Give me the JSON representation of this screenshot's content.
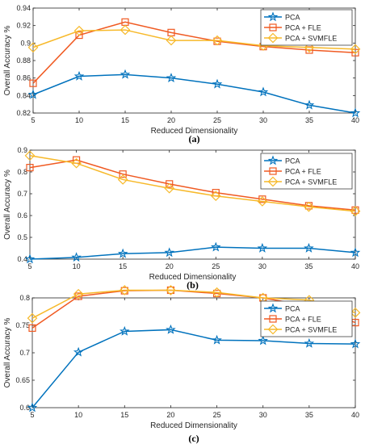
{
  "colors": {
    "PCA": "#0072bd",
    "PCA + FLE": "#f05a22",
    "PCA + SVMFLE": "#f7b92a"
  },
  "chart_data": [
    {
      "type": "line",
      "caption": "(a)",
      "xlabel": "Reduced Dimensionality",
      "ylabel": "Overall Accuracy %",
      "x": [
        5,
        10,
        15,
        20,
        25,
        30,
        35,
        40
      ],
      "xlim": [
        5,
        40
      ],
      "xticks": [
        "5",
        "10",
        "15",
        "20",
        "25",
        "30",
        "35",
        "40"
      ],
      "ylim": [
        0.82,
        0.94
      ],
      "yticks_values": [
        0.82,
        0.84,
        0.86,
        0.88,
        0.9,
        0.92,
        0.94
      ],
      "yticks": [
        "0.82",
        "0.84",
        "0.86",
        "0.88",
        "0.9",
        "0.92",
        "0.94"
      ],
      "grid": false,
      "legend": "top-right",
      "series": [
        {
          "name": "PCA",
          "marker": "star",
          "values": [
            0.841,
            0.862,
            0.864,
            0.86,
            0.853,
            0.844,
            0.829,
            0.82
          ]
        },
        {
          "name": "PCA + FLE",
          "marker": "square",
          "values": [
            0.854,
            0.909,
            0.924,
            0.912,
            0.902,
            0.896,
            0.892,
            0.889
          ]
        },
        {
          "name": "PCA + SVMFLE",
          "marker": "diamond",
          "values": [
            0.895,
            0.914,
            0.915,
            0.903,
            0.903,
            0.897,
            0.895,
            0.893
          ]
        }
      ]
    },
    {
      "type": "line",
      "caption": "(b)",
      "xlabel": "Reduced Dimensionality",
      "ylabel": "Overall Accuracy %",
      "x": [
        5,
        10,
        15,
        20,
        25,
        30,
        35,
        40
      ],
      "xlim": [
        5,
        40
      ],
      "xticks": [
        "5",
        "10",
        "15",
        "20",
        "25",
        "30",
        "35",
        "40"
      ],
      "ylim": [
        0.4,
        0.9
      ],
      "yticks_values": [
        0.4,
        0.5,
        0.6,
        0.7,
        0.8,
        0.9
      ],
      "yticks": [
        "0.4",
        "0.5",
        "0.6",
        "0.7",
        "0.8",
        "0.9"
      ],
      "grid": false,
      "legend": "top-right",
      "series": [
        {
          "name": "PCA",
          "marker": "star",
          "values": [
            0.4,
            0.408,
            0.425,
            0.43,
            0.455,
            0.45,
            0.45,
            0.43
          ]
        },
        {
          "name": "PCA + FLE",
          "marker": "square",
          "values": [
            0.82,
            0.855,
            0.79,
            0.745,
            0.705,
            0.675,
            0.645,
            0.625
          ]
        },
        {
          "name": "PCA + SVMFLE",
          "marker": "diamond",
          "values": [
            0.875,
            0.84,
            0.765,
            0.725,
            0.69,
            0.665,
            0.64,
            0.62
          ]
        }
      ]
    },
    {
      "type": "line",
      "caption": "(c)",
      "xlabel": "Reduced Dimensionality",
      "ylabel": "Overall Accuracy %",
      "x": [
        5,
        10,
        15,
        20,
        25,
        30,
        35,
        40
      ],
      "xlim": [
        5,
        40
      ],
      "xticks": [
        "5",
        "10",
        "15",
        "20",
        "25",
        "30",
        "35",
        "40"
      ],
      "ylim": [
        0.6,
        0.8
      ],
      "yticks_values": [
        0.6,
        0.65,
        0.7,
        0.75,
        0.8
      ],
      "yticks": [
        "0.6",
        "0.65",
        "0.7",
        "0.75",
        "0.8"
      ],
      "grid": false,
      "legend": "top-right",
      "series": [
        {
          "name": "PCA",
          "marker": "star",
          "values": [
            0.6,
            0.701,
            0.739,
            0.742,
            0.723,
            0.722,
            0.717,
            0.716
          ]
        },
        {
          "name": "PCA + FLE",
          "marker": "square",
          "values": [
            0.745,
            0.803,
            0.813,
            0.814,
            0.808,
            0.8,
            0.785,
            0.755
          ]
        },
        {
          "name": "PCA + SVMFLE",
          "marker": "diamond",
          "values": [
            0.763,
            0.807,
            0.814,
            0.814,
            0.81,
            0.8,
            0.796,
            0.773
          ]
        }
      ]
    }
  ]
}
